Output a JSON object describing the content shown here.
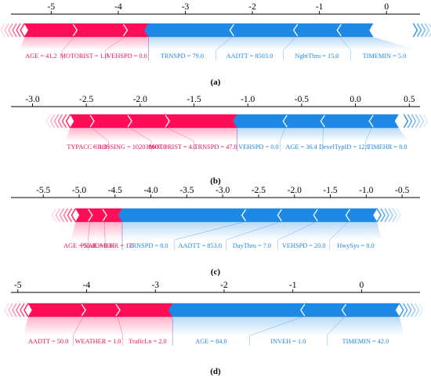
{
  "colors": {
    "positive": "#ff0d57",
    "negative": "#1e88e5",
    "positive_text": "#e8145a",
    "negative_text": "#1e88e5"
  },
  "chart_data": [
    {
      "type": "bar",
      "title": "",
      "panel_label": "(a)",
      "xlim": [
        -5.6,
        0.5
      ],
      "xticks": [
        -5,
        -4,
        -3,
        -2,
        -1,
        0
      ],
      "xtick_labels": [
        "-5",
        "-4",
        "-3",
        "-2",
        "-1",
        "0"
      ],
      "force_range": [
        -5.4,
        0.4
      ],
      "boundary": -3.55,
      "positive_features": [
        {
          "label": "AGE = 41.2",
          "start": -5.4,
          "end": -4.65
        },
        {
          "label": "MOTORIST = 1.0",
          "start": -4.65,
          "end": -3.9
        },
        {
          "label": "VEHSPD = 0.0",
          "start": -3.9,
          "end": -3.55
        }
      ],
      "negative_features": [
        {
          "label": "TRNSPD = 79.0",
          "start": -3.55,
          "end": -2.3
        },
        {
          "label": "AADTT = 8503.0",
          "start": -2.3,
          "end": -1.35
        },
        {
          "label": "NghtThru = 15.0",
          "start": -1.35,
          "end": -0.7
        },
        {
          "label": "TIMEMIN = 5.0",
          "start": -0.7,
          "end": -0.2
        }
      ]
    },
    {
      "type": "bar",
      "title": "",
      "panel_label": "(b)",
      "xlim": [
        -3.2,
        0.6
      ],
      "xticks": [
        -3.0,
        -2.5,
        -2.0,
        -1.5,
        -1.0,
        -0.5,
        0.0,
        0.5
      ],
      "xtick_labels": [
        "-3.0",
        "-2.5",
        "-2.0",
        "-1.5",
        "-1.0",
        "-0.5",
        "0.0",
        "0.5"
      ],
      "force_range": [
        -2.65,
        0.45
      ],
      "boundary": -1.1,
      "positive_features": [
        {
          "label": "TYPACC = 1.0",
          "start": -2.65,
          "end": -2.45
        },
        {
          "label": "CROSSING = 102030607.0",
          "start": -2.45,
          "end": -2.1
        },
        {
          "label": "MOTORIST = 4.0",
          "start": -2.1,
          "end": -1.75
        },
        {
          "label": "TRNSPD = 47.0",
          "start": -1.75,
          "end": -1.1
        }
      ],
      "negative_features": [
        {
          "label": "VEHSPD = 0.0",
          "start": -1.1,
          "end": -0.65
        },
        {
          "label": "AGE = 36.4",
          "start": -0.65,
          "end": -0.3
        },
        {
          "label": "DevelTypID = 12.0",
          "start": -0.3,
          "end": 0.15
        },
        {
          "label": "TIMEHR = 8.0",
          "start": 0.15,
          "end": 0.4
        }
      ]
    },
    {
      "type": "bar",
      "title": "",
      "panel_label": "(c)",
      "xlim": [
        -5.95,
        -0.25
      ],
      "xticks": [
        -5.5,
        -5.0,
        -4.5,
        -4.0,
        -3.5,
        -3.0,
        -2.5,
        -2.0,
        -1.5,
        -1.0,
        -0.5
      ],
      "xtick_labels": [
        "-5.5",
        "-5.0",
        "-4.5",
        "-4.0",
        "-3.5",
        "-3.0",
        "-2.5",
        "-2.0",
        "-1.5",
        "-1.0",
        "-0.5"
      ],
      "force_range": [
        -5.05,
        -0.85
      ],
      "boundary": -4.4,
      "positive_features": [
        {
          "label": "AGE = 56.0",
          "start": -5.05,
          "end": -4.85
        },
        {
          "label": "PEAK = 0.0",
          "start": -4.85,
          "end": -4.65
        },
        {
          "label": "TIMEHR = 1.0",
          "start": -4.65,
          "end": -4.4
        }
      ],
      "negative_features": [
        {
          "label": "TRNSPD = 8.0",
          "start": -4.4,
          "end": -2.7
        },
        {
          "label": "AADTT = 853.0",
          "start": -2.7,
          "end": -2.2
        },
        {
          "label": "DayThru = 7.0",
          "start": -2.2,
          "end": -1.7
        },
        {
          "label": "VEHSPD = 20.0",
          "start": -1.7,
          "end": -1.25
        },
        {
          "label": "HwySys = 8.0",
          "start": -1.25,
          "end": -0.85
        }
      ]
    },
    {
      "type": "bar",
      "title": "",
      "panel_label": "(d)",
      "xlim": [
        -5.1,
        0.85
      ],
      "xticks": [
        -5,
        -4,
        -3,
        -2,
        -1,
        0
      ],
      "xtick_labels": [
        "-5",
        "-4",
        "-3",
        "-2",
        "-1",
        "0"
      ],
      "force_range": [
        -4.85,
        0.55
      ],
      "boundary": -2.75,
      "positive_features": [
        {
          "label": "AADTT = 50.0",
          "start": -4.85,
          "end": -4.05
        },
        {
          "label": "WEATHER = 1.0",
          "start": -4.05,
          "end": -3.55
        },
        {
          "label": "TraficLn = 2.0",
          "start": -3.55,
          "end": -2.75
        }
      ],
      "negative_features": [
        {
          "label": "AGE = 84.0",
          "start": -2.75,
          "end": -0.85
        },
        {
          "label": "INVEH = 1.0",
          "start": -0.85,
          "end": -0.25
        },
        {
          "label": "TIMEMIN = 42.0",
          "start": -0.25,
          "end": 0.55
        }
      ]
    }
  ]
}
